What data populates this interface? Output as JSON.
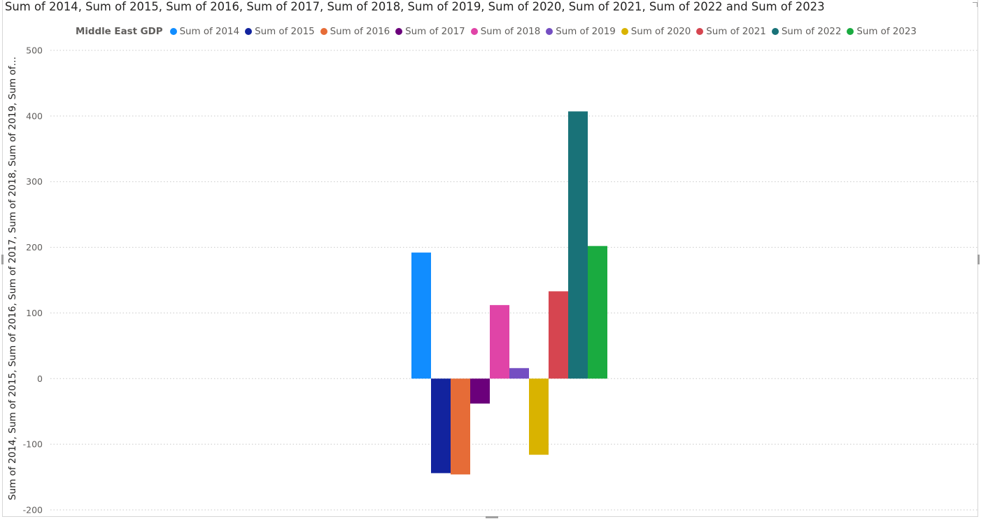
{
  "chart_data": {
    "type": "bar",
    "title": "Sum of 2014, Sum of 2015, Sum of 2016, Sum of 2017, Sum of 2018, Sum of 2019, Sum of 2020, Sum of 2021, Sum of 2022 and Sum of 2023",
    "legend_title": "Middle East GDP",
    "legend_position": "top-left",
    "ylabel": "Sum of 2014, Sum of 2015, Sum of 2016, Sum of 2017, Sum of 2018, Sum of 2019, Sum of…",
    "xlabel": "",
    "ylim": [
      -200,
      500
    ],
    "yticks": [
      500,
      400,
      300,
      200,
      100,
      0,
      -100,
      -200
    ],
    "grid": true,
    "series": [
      {
        "name": "Sum of 2014",
        "value": 192,
        "color": "#118DFF"
      },
      {
        "name": "Sum of 2015",
        "value": -144,
        "color": "#12239E"
      },
      {
        "name": "Sum of 2016",
        "value": -146,
        "color": "#E66C37"
      },
      {
        "name": "Sum of 2017",
        "value": -38,
        "color": "#6B007B"
      },
      {
        "name": "Sum of 2018",
        "value": 112,
        "color": "#E044A7"
      },
      {
        "name": "Sum of 2019",
        "value": 16,
        "color": "#744EC2"
      },
      {
        "name": "Sum of 2020",
        "value": -116,
        "color": "#D9B300"
      },
      {
        "name": "Sum of 2021",
        "value": 133,
        "color": "#D64550"
      },
      {
        "name": "Sum of 2022",
        "value": 407,
        "color": "#197278"
      },
      {
        "name": "Sum of 2023",
        "value": 202,
        "color": "#1AAB40"
      }
    ]
  }
}
